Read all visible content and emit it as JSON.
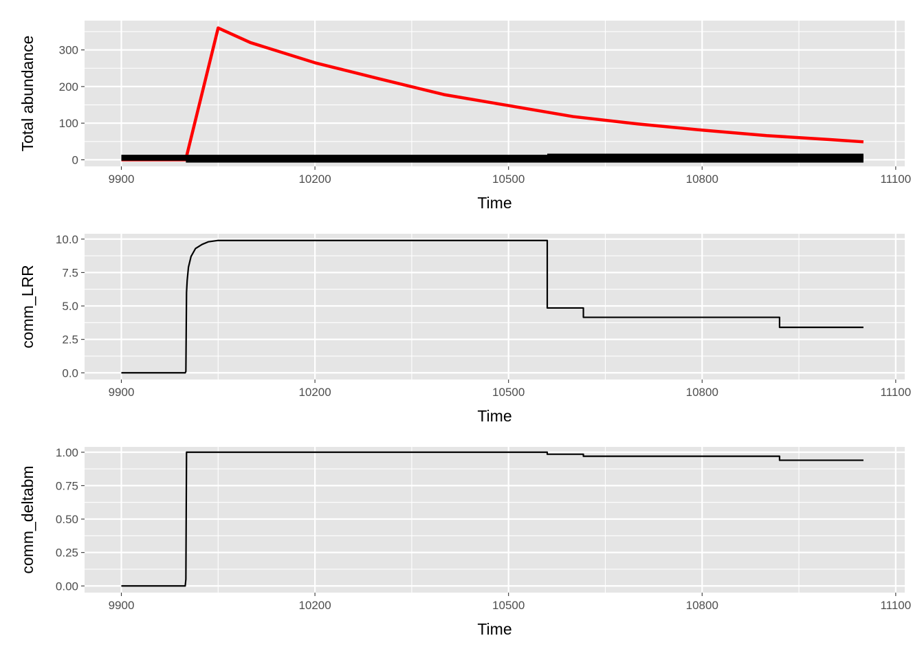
{
  "colors": {
    "panel_background": "#e5e5e5",
    "grid": "#ffffff",
    "tick_text": "#4d4d4d",
    "total_abundance_line": "#ff0000",
    "species_lines": "#000000",
    "metric_line": "#000000"
  },
  "chart_data": [
    {
      "type": "line",
      "xlabel": "Time",
      "ylabel": "Total abundance",
      "xlim": [
        9843,
        11114
      ],
      "ylim": [
        -18,
        380
      ],
      "x_ticks": [
        9900,
        10200,
        10500,
        10800,
        11100
      ],
      "x_tick_labels": [
        "9900",
        "10200",
        "10500",
        "10800",
        "11100"
      ],
      "y_ticks": [
        0,
        100,
        200,
        300
      ],
      "y_tick_labels": [
        "0",
        "100",
        "200",
        "300"
      ],
      "grid": true,
      "series": [
        {
          "color": "#ff0000",
          "x": [
            9900,
            9999,
            10000,
            10050,
            10100,
            10200,
            10300,
            10400,
            10500,
            10600,
            10700,
            10800,
            10900,
            11000,
            11050
          ],
          "y": [
            0,
            0,
            2,
            360,
            320,
            265,
            221,
            178,
            148,
            118,
            98,
            81,
            66,
            55,
            49
          ]
        },
        {
          "color": "#000000",
          "x": [
            9900,
            11050
          ],
          "y": [
            3,
            3
          ]
        },
        {
          "color": "#000000",
          "x": [
            9900,
            11050
          ],
          "y": [
            8,
            8
          ]
        },
        {
          "color": "#000000",
          "x": [
            10000,
            11050
          ],
          "y": [
            -2,
            -2
          ]
        },
        {
          "color": "#000000",
          "x": [
            10560,
            11050
          ],
          "y": [
            11,
            11
          ]
        }
      ]
    },
    {
      "type": "line",
      "xlabel": "Time",
      "ylabel": "comm_LRR",
      "xlim": [
        9843,
        11114
      ],
      "ylim": [
        -0.5,
        10.4
      ],
      "x_ticks": [
        9900,
        10200,
        10500,
        10800,
        11100
      ],
      "x_tick_labels": [
        "9900",
        "10200",
        "10500",
        "10800",
        "11100"
      ],
      "y_ticks": [
        0,
        2.5,
        5,
        7.5,
        10
      ],
      "y_tick_labels": [
        "0.0",
        "2.5",
        "5.0",
        "7.5",
        "10.0"
      ],
      "grid": true,
      "series": [
        {
          "color": "#000000",
          "x": [
            9900,
            9999,
            10000,
            10001,
            10002,
            10004,
            10008,
            10015,
            10025,
            10035,
            10050,
            10560,
            10560,
            10616,
            10616,
            10920,
            10920,
            11050
          ],
          "y": [
            0,
            0,
            0.1,
            6.0,
            6.9,
            7.9,
            8.7,
            9.3,
            9.6,
            9.8,
            9.9,
            9.9,
            4.85,
            4.85,
            4.15,
            4.15,
            3.4,
            3.4
          ]
        }
      ]
    },
    {
      "type": "line",
      "xlabel": "Time",
      "ylabel": "comm_deltabm",
      "xlim": [
        9843,
        11114
      ],
      "ylim": [
        -0.05,
        1.04
      ],
      "x_ticks": [
        9900,
        10200,
        10500,
        10800,
        11100
      ],
      "x_tick_labels": [
        "9900",
        "10200",
        "10500",
        "10800",
        "11100"
      ],
      "y_ticks": [
        0,
        0.25,
        0.5,
        0.75,
        1
      ],
      "y_tick_labels": [
        "0.00",
        "0.25",
        "0.50",
        "0.75",
        "1.00"
      ],
      "grid": true,
      "series": [
        {
          "color": "#000000",
          "x": [
            9900,
            9999,
            10000,
            10001,
            10560,
            10560,
            10616,
            10616,
            10920,
            10920,
            11050
          ],
          "y": [
            0,
            0,
            0.05,
            1.0,
            1.0,
            0.985,
            0.985,
            0.97,
            0.97,
            0.94,
            0.94
          ]
        }
      ]
    }
  ]
}
